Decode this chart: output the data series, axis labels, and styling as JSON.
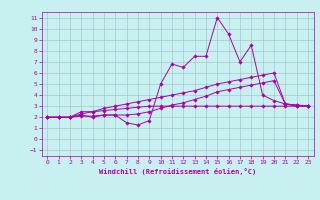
{
  "title": "",
  "xlabel": "Windchill (Refroidissement éolien,°C)",
  "background_color": "#c8f0f0",
  "grid_color": "#a0c8d0",
  "line_color": "#aa00aa",
  "xlim": [
    -0.5,
    23.5
  ],
  "ylim": [
    -1.5,
    11.5
  ],
  "xticks": [
    0,
    1,
    2,
    3,
    4,
    5,
    6,
    7,
    8,
    9,
    10,
    11,
    12,
    13,
    14,
    15,
    16,
    17,
    18,
    19,
    20,
    21,
    22,
    23
  ],
  "yticks": [
    -1,
    0,
    1,
    2,
    3,
    4,
    5,
    6,
    7,
    8,
    9,
    10,
    11
  ],
  "series": [
    [
      2.0,
      2.0,
      2.0,
      2.2,
      2.0,
      2.2,
      2.2,
      1.5,
      1.3,
      1.7,
      5.0,
      6.8,
      6.5,
      7.5,
      7.5,
      11.0,
      9.5,
      7.0,
      8.5,
      4.0,
      3.5,
      3.2,
      3.0,
      3.0
    ],
    [
      2.0,
      2.0,
      2.0,
      2.1,
      2.1,
      2.2,
      2.2,
      2.2,
      2.3,
      2.5,
      2.8,
      3.1,
      3.3,
      3.6,
      3.9,
      4.3,
      4.5,
      4.7,
      4.9,
      5.1,
      5.3,
      3.2,
      3.1,
      3.0
    ],
    [
      2.0,
      2.0,
      2.0,
      2.3,
      2.5,
      2.8,
      3.0,
      3.2,
      3.4,
      3.6,
      3.8,
      4.0,
      4.2,
      4.4,
      4.7,
      5.0,
      5.2,
      5.4,
      5.6,
      5.8,
      6.0,
      3.2,
      3.1,
      3.0
    ],
    [
      2.0,
      2.0,
      2.0,
      2.5,
      2.5,
      2.6,
      2.7,
      2.8,
      2.9,
      3.0,
      3.0,
      3.0,
      3.0,
      3.0,
      3.0,
      3.0,
      3.0,
      3.0,
      3.0,
      3.0,
      3.0,
      3.0,
      3.0,
      3.0
    ]
  ]
}
